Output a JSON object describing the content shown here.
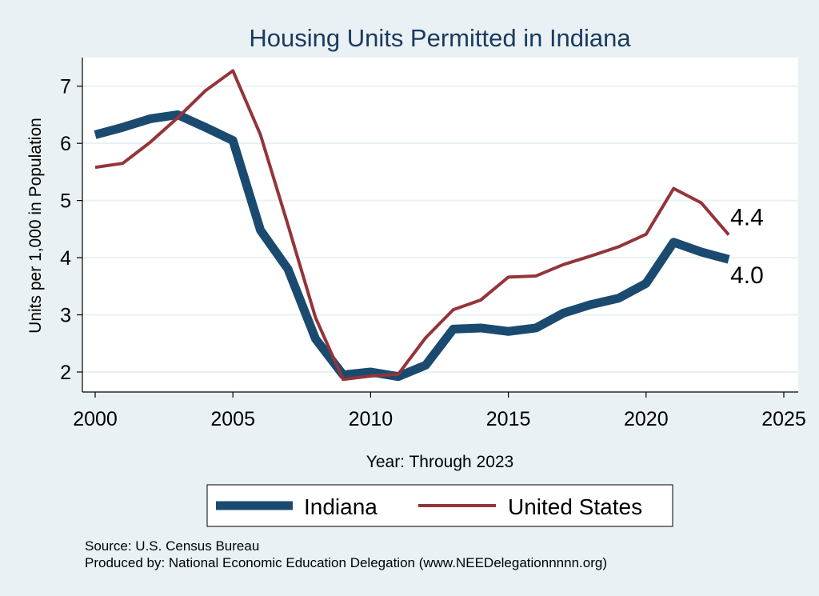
{
  "colors": {
    "background": "#e9f1f4",
    "plot_background": "#ffffff",
    "gridline": "#e9f1f4",
    "indiana": "#1b4a70",
    "united_states": "#94343a",
    "title": "#1a3a5f"
  },
  "chart_data": {
    "type": "line",
    "title": "Housing Units Permitted in Indiana",
    "xlabel": "Year: Through 2023",
    "ylabel": "Units per 1,000 in Population",
    "xlim": [
      2000,
      2025
    ],
    "ylim": [
      1.65,
      7.5
    ],
    "xticks": [
      2000,
      2005,
      2010,
      2015,
      2020,
      2025
    ],
    "yticks": [
      2,
      3,
      4,
      5,
      6,
      7
    ],
    "grid": true,
    "legend_position": "bottom",
    "x": [
      2000,
      2001,
      2002,
      2003,
      2004,
      2005,
      2006,
      2007,
      2008,
      2009,
      2010,
      2011,
      2012,
      2013,
      2014,
      2015,
      2016,
      2017,
      2018,
      2019,
      2020,
      2021,
      2022,
      2023
    ],
    "series": [
      {
        "name": "Indiana",
        "values": [
          6.15,
          6.28,
          6.43,
          6.5,
          6.28,
          6.05,
          4.48,
          3.8,
          2.58,
          1.95,
          2.0,
          1.92,
          2.12,
          2.75,
          2.77,
          2.71,
          2.77,
          3.03,
          3.18,
          3.29,
          3.55,
          4.27,
          4.1,
          3.97
        ],
        "end_label": "4.0"
      },
      {
        "name": "United States",
        "values": [
          5.58,
          5.65,
          6.02,
          6.45,
          6.92,
          7.27,
          6.15,
          4.57,
          2.95,
          1.87,
          1.93,
          1.96,
          2.6,
          3.09,
          3.26,
          3.66,
          3.68,
          3.88,
          4.03,
          4.19,
          4.41,
          5.21,
          4.96,
          4.4
        ],
        "end_label": "4.4"
      }
    ]
  },
  "footer": {
    "source": "Source: U.S. Census Bureau",
    "produced_by": "Produced by: National Economic Education Delegation (www.NEEDelegationnnnn.org)"
  }
}
